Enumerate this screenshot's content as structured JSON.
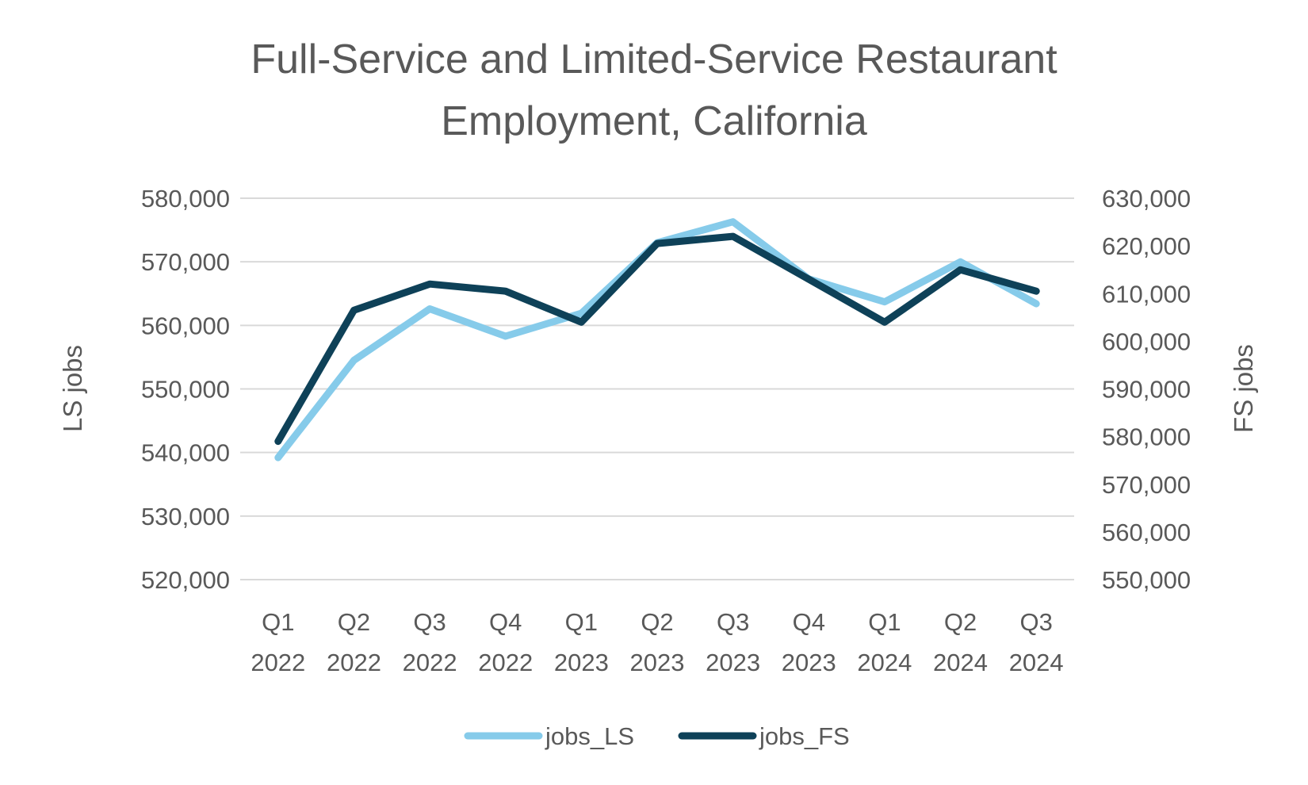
{
  "chart_data": {
    "type": "line",
    "title_lines": [
      "Full-Service and Limited-Service Restaurant",
      "Employment, California"
    ],
    "categories": [
      [
        "Q1",
        "2022"
      ],
      [
        "Q2",
        "2022"
      ],
      [
        "Q3",
        "2022"
      ],
      [
        "Q4",
        "2022"
      ],
      [
        "Q1",
        "2023"
      ],
      [
        "Q2",
        "2023"
      ],
      [
        "Q3",
        "2023"
      ],
      [
        "Q4",
        "2023"
      ],
      [
        "Q1",
        "2024"
      ],
      [
        "Q2",
        "2024"
      ],
      [
        "Q3",
        "2024"
      ]
    ],
    "y_left": {
      "label": "LS jobs",
      "min": 520000,
      "max": 580000,
      "step": 10000,
      "ticks": [
        "520,000",
        "530,000",
        "540,000",
        "550,000",
        "560,000",
        "570,000",
        "580,000"
      ]
    },
    "y_right": {
      "label": "FS jobs",
      "min": 550000,
      "max": 630000,
      "step": 10000,
      "ticks": [
        "550,000",
        "560,000",
        "570,000",
        "580,000",
        "590,000",
        "600,000",
        "610,000",
        "620,000",
        "630,000"
      ]
    },
    "series": [
      {
        "name": "jobs_LS",
        "axis": "left",
        "color": "#86CBEA",
        "values": [
          539200,
          554500,
          562600,
          558300,
          561900,
          573000,
          576300,
          567300,
          563700,
          570000,
          563400
        ]
      },
      {
        "name": "jobs_FS",
        "axis": "right",
        "color": "#0E4158",
        "values": [
          579000,
          606500,
          612000,
          610500,
          604000,
          620500,
          622000,
          613000,
          604000,
          615000,
          610500
        ]
      }
    ],
    "grid": true,
    "legend_position": "bottom"
  }
}
